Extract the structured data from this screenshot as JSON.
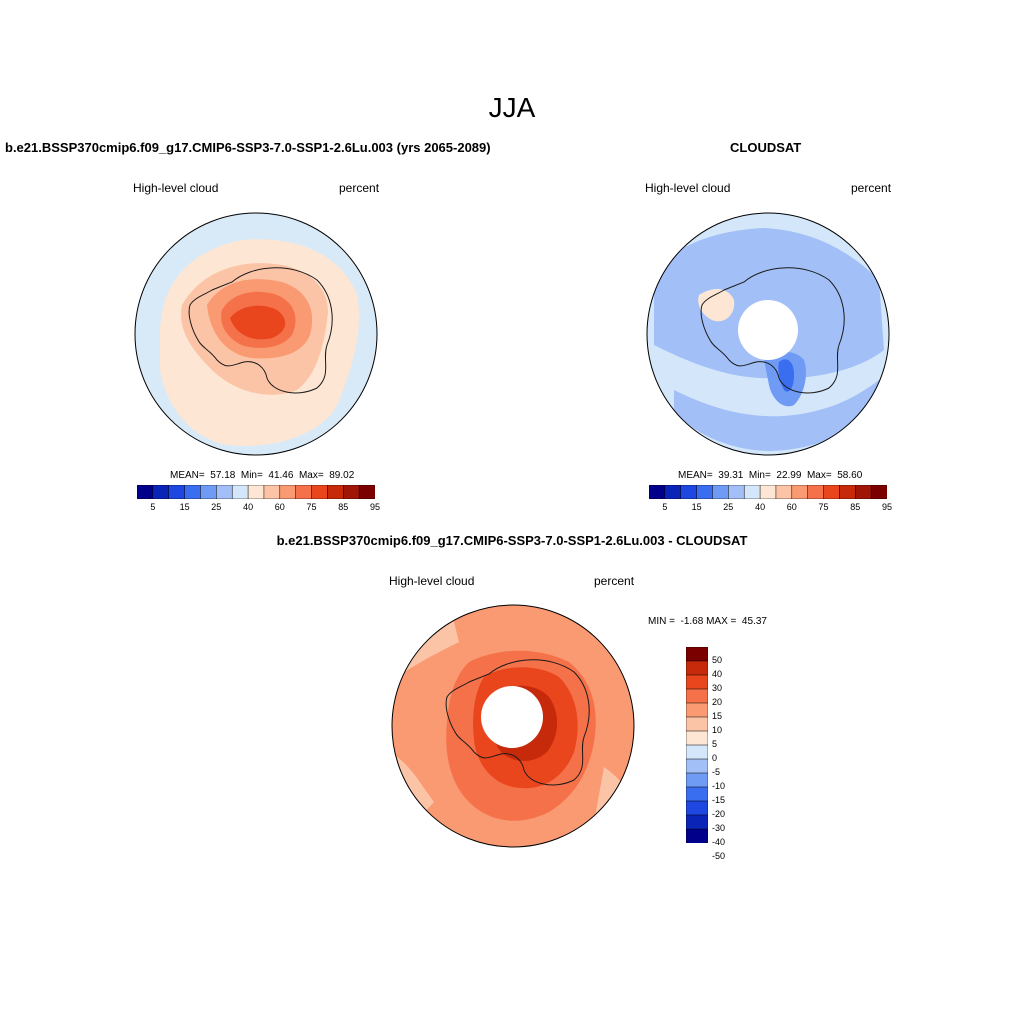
{
  "page": {
    "title": "JJA"
  },
  "colors": {
    "map_bg": "#d8eaf8",
    "coast": "#1a1a1a",
    "hole": "#ffffff"
  },
  "panel_left": {
    "title": "b.e21.BSSP370cmip6.f09_g17.CMIP6-SSP3-7.0-SSP1-2.6Lu.003 (yrs 2065-2089)",
    "variable": "High-level cloud",
    "units": "percent",
    "stats": "MEAN=  57.18  Min=  41.46  Max=  89.02"
  },
  "panel_right": {
    "title": "CLOUDSAT",
    "variable": "High-level cloud",
    "units": "percent",
    "stats": "MEAN=  39.31  Min=  22.99  Max=  58.60"
  },
  "panel_diff": {
    "title": "b.e21.BSSP370cmip6.f09_g17.CMIP6-SSP3-7.0-SSP1-2.6Lu.003 - CLOUDSAT",
    "variable": "High-level cloud",
    "units": "percent",
    "stats": "MIN =  -1.68 MAX =  45.37"
  },
  "colorbar_abs": {
    "colors": [
      "#00008b",
      "#0a24b8",
      "#1e46e0",
      "#3a6ef0",
      "#6f9bf4",
      "#a2c0f7",
      "#d4e6fa",
      "#fde6d4",
      "#fcc4a6",
      "#f99a72",
      "#f5714a",
      "#e9461e",
      "#c72a0a",
      "#a01505",
      "#7a0000"
    ],
    "labels": [
      "5",
      "15",
      "25",
      "40",
      "60",
      "75",
      "85",
      "95"
    ]
  },
  "colorbar_diff": {
    "colors": [
      "#00008b",
      "#0a24b8",
      "#1e46e0",
      "#3a6ef0",
      "#6f9bf4",
      "#a2c0f7",
      "#d4e6fa",
      "#fde6d4",
      "#fcc4a6",
      "#f99a72",
      "#f5714a",
      "#e9461e",
      "#c72a0a",
      "#7a0000"
    ],
    "labels": [
      "50",
      "40",
      "30",
      "20",
      "15",
      "10",
      "5",
      "0",
      "-5",
      "-10",
      "-15",
      "-20",
      "-30",
      "-40",
      "-50"
    ]
  }
}
